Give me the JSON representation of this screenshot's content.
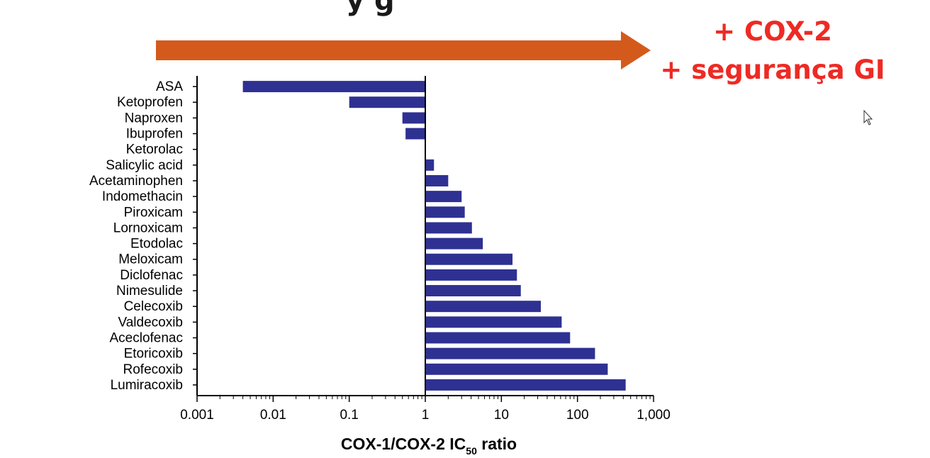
{
  "slide": {
    "title_partial": "y g",
    "callout_line1": "+ COX-2",
    "callout_line2": "+ segurança GI",
    "arrow_color": "#d45a1c",
    "callout_color": "#ee2a24",
    "pointer_icon": "mouse-cursor-icon"
  },
  "chart_data": {
    "type": "bar",
    "orientation": "horizontal",
    "x_scale": "log",
    "bar_color": "#2e3192",
    "categories": [
      "ASA",
      "Ketoprofen",
      "Naproxen",
      "Ibuprofen",
      "Ketorolac",
      "Salicylic acid",
      "Acetaminophen",
      "Indomethacin",
      "Piroxicam",
      "Lornoxicam",
      "Etodolac",
      "Meloxicam",
      "Diclofenac",
      "Nimesulide",
      "Celecoxib",
      "Valdecoxib",
      "Aceclofenac",
      "Etoricoxib",
      "Rofecoxib",
      "Lumiracoxib"
    ],
    "values": [
      0.004,
      0.1,
      0.5,
      0.55,
      0.98,
      1.3,
      2.0,
      3.0,
      3.3,
      4.1,
      5.7,
      14,
      16,
      18,
      33,
      62,
      80,
      170,
      250,
      430
    ],
    "xlim": [
      0.001,
      1000
    ],
    "xticks": [
      0.001,
      0.01,
      0.1,
      1,
      10,
      100,
      1000
    ],
    "xtick_labels": [
      "0.001",
      "0.01",
      "0.1",
      "1",
      "10",
      "100",
      "1,000"
    ],
    "xlabel_main": "COX-1/COX-2 IC",
    "xlabel_sub": "50",
    "xlabel_tail": " ratio",
    "grid": false,
    "legend": "none"
  }
}
